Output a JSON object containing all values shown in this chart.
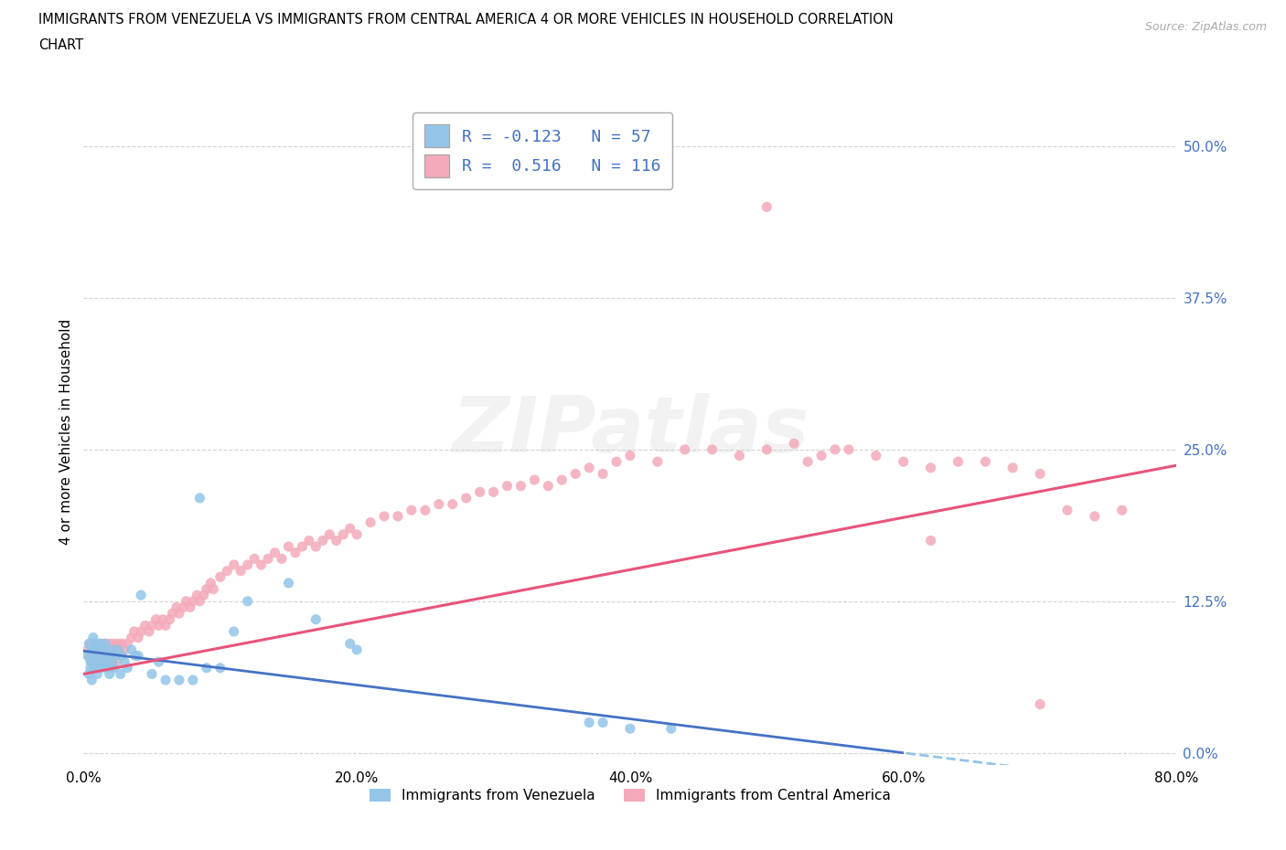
{
  "title_line1": "IMMIGRANTS FROM VENEZUELA VS IMMIGRANTS FROM CENTRAL AMERICA 4 OR MORE VEHICLES IN HOUSEHOLD CORRELATION",
  "title_line2": "CHART",
  "source_text": "Source: ZipAtlas.com",
  "watermark": "ZIPatlas",
  "ylabel": "4 or more Vehicles in Household",
  "xlim": [
    0.0,
    0.8
  ],
  "ylim": [
    -0.01,
    0.54
  ],
  "xticks": [
    0.0,
    0.2,
    0.4,
    0.6,
    0.8
  ],
  "xtick_labels": [
    "0.0%",
    "20.0%",
    "40.0%",
    "60.0%",
    "80.0%"
  ],
  "yticks": [
    0.0,
    0.125,
    0.25,
    0.375,
    0.5
  ],
  "ytick_labels": [
    "0.0%",
    "12.5%",
    "25.0%",
    "37.5%",
    "50.0%"
  ],
  "legend_labels": [
    "Immigrants from Venezuela",
    "Immigrants from Central America"
  ],
  "r_venezuela": -0.123,
  "n_venezuela": 57,
  "r_central": 0.516,
  "n_central": 116,
  "color_venezuela": "#92C5E8",
  "color_central": "#F4AABA",
  "line_color_venezuela_solid": "#4472C4",
  "line_color_venezuela_dashed": "#92C5E8",
  "line_color_central": "#E8547A",
  "background_color": "#ffffff",
  "grid_color": "#c8c8c8",
  "venezuela_x": [
    0.003,
    0.004,
    0.004,
    0.005,
    0.005,
    0.006,
    0.006,
    0.007,
    0.007,
    0.008,
    0.008,
    0.009,
    0.009,
    0.01,
    0.01,
    0.011,
    0.012,
    0.012,
    0.013,
    0.014,
    0.015,
    0.016,
    0.016,
    0.017,
    0.018,
    0.019,
    0.02,
    0.021,
    0.022,
    0.023,
    0.025,
    0.027,
    0.028,
    0.03,
    0.032,
    0.035,
    0.038,
    0.04,
    0.042,
    0.05,
    0.055,
    0.06,
    0.07,
    0.08,
    0.085,
    0.09,
    0.1,
    0.11,
    0.12,
    0.15,
    0.17,
    0.195,
    0.2,
    0.37,
    0.38,
    0.4,
    0.43
  ],
  "venezuela_y": [
    0.08,
    0.065,
    0.09,
    0.075,
    0.07,
    0.085,
    0.06,
    0.08,
    0.095,
    0.07,
    0.085,
    0.075,
    0.09,
    0.065,
    0.08,
    0.085,
    0.07,
    0.09,
    0.075,
    0.08,
    0.085,
    0.07,
    0.09,
    0.075,
    0.08,
    0.065,
    0.085,
    0.075,
    0.07,
    0.08,
    0.085,
    0.065,
    0.08,
    0.075,
    0.07,
    0.085,
    0.08,
    0.08,
    0.13,
    0.065,
    0.075,
    0.06,
    0.06,
    0.06,
    0.21,
    0.07,
    0.07,
    0.1,
    0.125,
    0.14,
    0.11,
    0.09,
    0.085,
    0.025,
    0.025,
    0.02,
    0.02
  ],
  "central_x": [
    0.003,
    0.004,
    0.005,
    0.006,
    0.007,
    0.008,
    0.009,
    0.01,
    0.011,
    0.012,
    0.013,
    0.014,
    0.015,
    0.016,
    0.017,
    0.018,
    0.019,
    0.02,
    0.021,
    0.022,
    0.023,
    0.024,
    0.025,
    0.026,
    0.028,
    0.03,
    0.032,
    0.035,
    0.037,
    0.04,
    0.042,
    0.045,
    0.048,
    0.05,
    0.053,
    0.055,
    0.058,
    0.06,
    0.063,
    0.065,
    0.068,
    0.07,
    0.073,
    0.075,
    0.078,
    0.08,
    0.083,
    0.085,
    0.088,
    0.09,
    0.093,
    0.095,
    0.1,
    0.105,
    0.11,
    0.115,
    0.12,
    0.125,
    0.13,
    0.135,
    0.14,
    0.145,
    0.15,
    0.155,
    0.16,
    0.165,
    0.17,
    0.175,
    0.18,
    0.185,
    0.19,
    0.195,
    0.2,
    0.21,
    0.22,
    0.23,
    0.24,
    0.25,
    0.26,
    0.27,
    0.28,
    0.29,
    0.3,
    0.31,
    0.32,
    0.33,
    0.34,
    0.35,
    0.36,
    0.37,
    0.38,
    0.39,
    0.4,
    0.42,
    0.44,
    0.46,
    0.48,
    0.5,
    0.52,
    0.54,
    0.56,
    0.58,
    0.6,
    0.62,
    0.64,
    0.66,
    0.68,
    0.7,
    0.55,
    0.62,
    0.7,
    0.72,
    0.74,
    0.76,
    0.5,
    0.53
  ],
  "central_y": [
    0.085,
    0.08,
    0.09,
    0.075,
    0.085,
    0.08,
    0.09,
    0.085,
    0.075,
    0.09,
    0.08,
    0.085,
    0.09,
    0.075,
    0.085,
    0.08,
    0.09,
    0.085,
    0.08,
    0.09,
    0.085,
    0.075,
    0.09,
    0.085,
    0.09,
    0.085,
    0.09,
    0.095,
    0.1,
    0.095,
    0.1,
    0.105,
    0.1,
    0.105,
    0.11,
    0.105,
    0.11,
    0.105,
    0.11,
    0.115,
    0.12,
    0.115,
    0.12,
    0.125,
    0.12,
    0.125,
    0.13,
    0.125,
    0.13,
    0.135,
    0.14,
    0.135,
    0.145,
    0.15,
    0.155,
    0.15,
    0.155,
    0.16,
    0.155,
    0.16,
    0.165,
    0.16,
    0.17,
    0.165,
    0.17,
    0.175,
    0.17,
    0.175,
    0.18,
    0.175,
    0.18,
    0.185,
    0.18,
    0.19,
    0.195,
    0.195,
    0.2,
    0.2,
    0.205,
    0.205,
    0.21,
    0.215,
    0.215,
    0.22,
    0.22,
    0.225,
    0.22,
    0.225,
    0.23,
    0.235,
    0.23,
    0.24,
    0.245,
    0.24,
    0.25,
    0.25,
    0.245,
    0.25,
    0.255,
    0.245,
    0.25,
    0.245,
    0.24,
    0.235,
    0.24,
    0.24,
    0.235,
    0.23,
    0.25,
    0.175,
    0.04,
    0.2,
    0.195,
    0.2,
    0.45,
    0.24
  ]
}
